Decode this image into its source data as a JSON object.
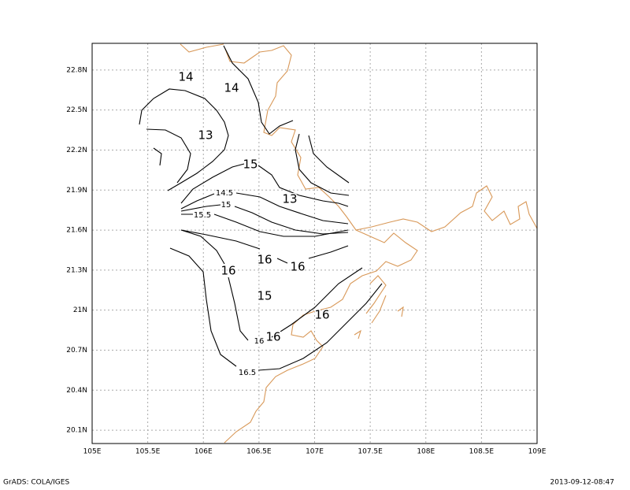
{
  "map": {
    "xlim": [
      105,
      109
    ],
    "ylim": [
      20,
      23
    ],
    "xticks": [
      {
        "value": 105,
        "label": "105E"
      },
      {
        "value": 105.5,
        "label": "105.5E"
      },
      {
        "value": 106,
        "label": "106E"
      },
      {
        "value": 106.5,
        "label": "106.5E"
      },
      {
        "value": 107,
        "label": "107E"
      },
      {
        "value": 107.5,
        "label": "107.5E"
      },
      {
        "value": 108,
        "label": "108E"
      },
      {
        "value": 108.5,
        "label": "108.5E"
      },
      {
        "value": 109,
        "label": "109E"
      }
    ],
    "yticks": [
      {
        "value": 20.1,
        "label": "20.1N"
      },
      {
        "value": 20.4,
        "label": "20.4N"
      },
      {
        "value": 20.7,
        "label": "20.7N"
      },
      {
        "value": 21,
        "label": "21N"
      },
      {
        "value": 21.3,
        "label": "21.3N"
      },
      {
        "value": 21.6,
        "label": "21.6N"
      },
      {
        "value": 21.9,
        "label": "21.9N"
      },
      {
        "value": 22.2,
        "label": "22.2N"
      },
      {
        "value": 22.5,
        "label": "22.5N"
      },
      {
        "value": 22.8,
        "label": "22.8N"
      }
    ],
    "contour_labels": [
      14,
      14,
      13,
      15,
      14.5,
      15,
      15.5,
      13,
      16,
      16,
      16,
      15,
      16,
      16,
      16,
      16.5
    ]
  },
  "footer": {
    "left": "GrADS: COLA/IGES",
    "right": "2013-09-12-08:47"
  }
}
